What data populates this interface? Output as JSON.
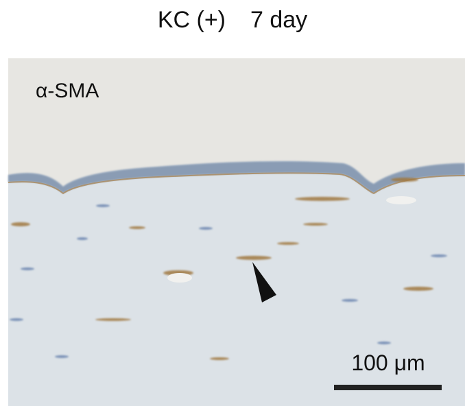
{
  "title": {
    "group": "KC (+)",
    "timepoint": "7 day"
  },
  "image": {
    "stain_label": "α-SMA",
    "scale_bar_label": "100 μm"
  }
}
